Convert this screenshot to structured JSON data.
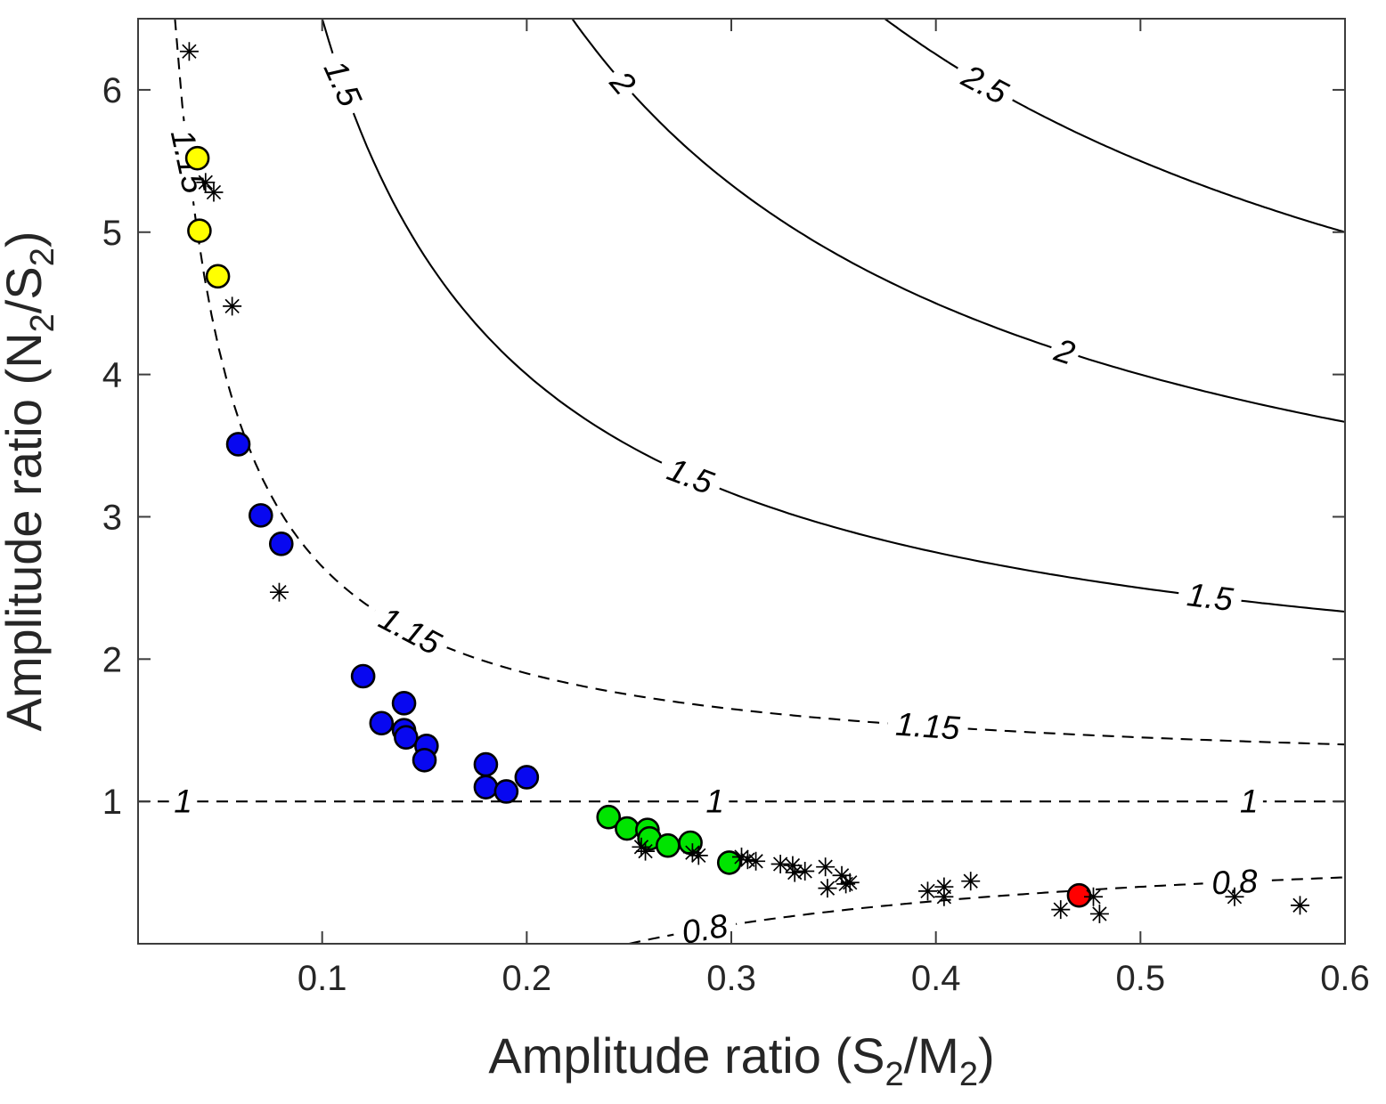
{
  "chart_data": {
    "type": "scatter",
    "title": "",
    "xlabel_parts": [
      {
        "t": "Amplitude ratio (S"
      },
      {
        "t": "2",
        "sub": true
      },
      {
        "t": "/M"
      },
      {
        "t": "2",
        "sub": true
      },
      {
        "t": ")"
      }
    ],
    "ylabel_parts": [
      {
        "t": "Amplitude ratio (N"
      },
      {
        "t": "2",
        "sub": true
      },
      {
        "t": "/S"
      },
      {
        "t": "2",
        "sub": true
      },
      {
        "t": ")"
      }
    ],
    "xlim": [
      0.01,
      0.6
    ],
    "ylim": [
      0,
      6.5
    ],
    "xticks": {
      "values": [
        0.1,
        0.2,
        0.3,
        0.4,
        0.5,
        0.6
      ],
      "labels": [
        "0.1",
        "0.2",
        "0.3",
        "0.4",
        "0.5",
        "0.6"
      ]
    },
    "yticks": {
      "values": [
        1,
        2,
        3,
        4,
        5,
        6
      ],
      "labels": [
        "1",
        "2",
        "3",
        "4",
        "5",
        "6"
      ]
    },
    "grid": false,
    "legend": "none",
    "contours": {
      "formula": "y = L + (L-1)/x",
      "levels": [
        {
          "level": 0.8,
          "text": "0.8",
          "dashed": true,
          "label_positions": [
            {
              "x": 0.287,
              "rot": -10
            },
            {
              "x": 0.546,
              "rot": -3
            }
          ]
        },
        {
          "level": 1,
          "text": "1",
          "dashed": true,
          "label_positions": [
            {
              "x": 0.032,
              "rot": 0
            },
            {
              "x": 0.292,
              "rot": 0
            },
            {
              "x": 0.553,
              "rot": 0
            }
          ]
        },
        {
          "level": 1.15,
          "text": "1.15",
          "dashed": true,
          "label_positions": [
            {
              "x": 0.0345,
              "rot": 78
            },
            {
              "x": 0.143,
              "rot": 28
            },
            {
              "x": 0.396,
              "rot": 4
            }
          ]
        },
        {
          "level": 1.5,
          "text": "1.5",
          "dashed": false,
          "label_positions": [
            {
              "x": 0.11,
              "rot": 66
            },
            {
              "x": 0.28,
              "rot": 21
            },
            {
              "x": 0.534,
              "rot": 7
            }
          ]
        },
        {
          "level": 2,
          "text": "2",
          "dashed": false,
          "label_positions": [
            {
              "x": 0.247,
              "rot": 50
            },
            {
              "x": 0.463,
              "rot": 18
            }
          ]
        },
        {
          "level": 2.5,
          "text": "2.5",
          "dashed": false,
          "label_positions": [
            {
              "x": 0.424,
              "rot": 28
            }
          ]
        }
      ]
    },
    "series": [
      {
        "name": "yellow-circles",
        "marker": "circle",
        "color": "#ffff00",
        "points": [
          [
            0.039,
            5.52
          ],
          [
            0.04,
            5.01
          ],
          [
            0.049,
            4.69
          ]
        ]
      },
      {
        "name": "blue-circles",
        "marker": "circle",
        "color": "#0808f0",
        "points": [
          [
            0.059,
            3.51
          ],
          [
            0.07,
            3.01
          ],
          [
            0.08,
            2.81
          ],
          [
            0.12,
            1.88
          ],
          [
            0.14,
            1.69
          ],
          [
            0.129,
            1.55
          ],
          [
            0.14,
            1.5
          ],
          [
            0.141,
            1.45
          ],
          [
            0.151,
            1.39
          ],
          [
            0.15,
            1.29
          ],
          [
            0.18,
            1.26
          ],
          [
            0.18,
            1.1
          ],
          [
            0.19,
            1.07
          ],
          [
            0.2,
            1.17
          ]
        ]
      },
      {
        "name": "green-circles",
        "marker": "circle",
        "color": "#00e400",
        "points": [
          [
            0.24,
            0.89
          ],
          [
            0.249,
            0.81
          ],
          [
            0.259,
            0.8
          ],
          [
            0.26,
            0.74
          ],
          [
            0.269,
            0.69
          ],
          [
            0.28,
            0.71
          ],
          [
            0.299,
            0.57
          ]
        ]
      },
      {
        "name": "red-circle",
        "marker": "circle",
        "color": "#ff0000",
        "points": [
          [
            0.47,
            0.34
          ]
        ]
      },
      {
        "name": "black-asterisks",
        "marker": "asterisk",
        "color": "#000000",
        "points": [
          [
            0.035,
            6.27
          ],
          [
            0.043,
            5.35
          ],
          [
            0.047,
            5.28
          ],
          [
            0.056,
            4.48
          ],
          [
            0.079,
            2.47
          ],
          [
            0.256,
            0.68
          ],
          [
            0.258,
            0.65
          ],
          [
            0.281,
            0.64
          ],
          [
            0.284,
            0.62
          ],
          [
            0.305,
            0.61
          ],
          [
            0.308,
            0.59
          ],
          [
            0.312,
            0.58
          ],
          [
            0.324,
            0.56
          ],
          [
            0.33,
            0.55
          ],
          [
            0.331,
            0.5
          ],
          [
            0.336,
            0.51
          ],
          [
            0.346,
            0.54
          ],
          [
            0.347,
            0.39
          ],
          [
            0.354,
            0.48
          ],
          [
            0.356,
            0.42
          ],
          [
            0.358,
            0.43
          ],
          [
            0.396,
            0.37
          ],
          [
            0.404,
            0.4
          ],
          [
            0.404,
            0.33
          ],
          [
            0.417,
            0.44
          ],
          [
            0.461,
            0.24
          ],
          [
            0.477,
            0.33
          ],
          [
            0.48,
            0.21
          ],
          [
            0.546,
            0.33
          ],
          [
            0.578,
            0.27
          ]
        ]
      }
    ],
    "colors": {
      "axis": "#3d3d3d",
      "text": "#262626",
      "contour": "#000000",
      "background": "#ffffff"
    }
  }
}
